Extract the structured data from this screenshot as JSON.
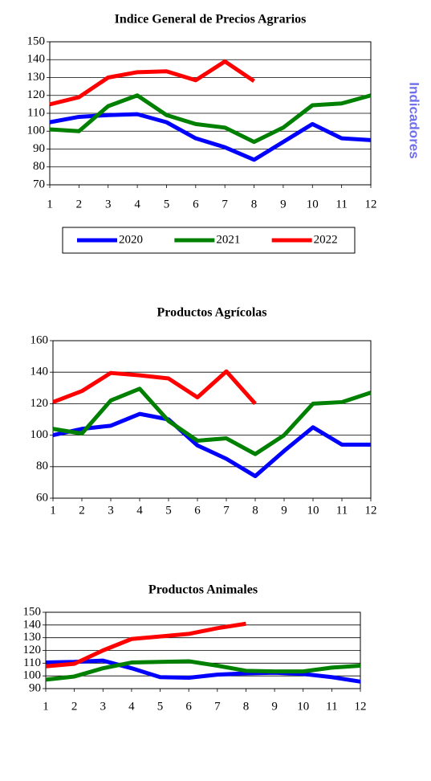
{
  "side_label": "Indicadores",
  "chart_data": [
    {
      "type": "line",
      "title": "Indice General de Precios Agrarios",
      "x": [
        1,
        2,
        3,
        4,
        5,
        6,
        7,
        8,
        9,
        10,
        11,
        12
      ],
      "xlim": [
        1,
        12
      ],
      "xticks": [
        1,
        2,
        3,
        4,
        5,
        6,
        7,
        8,
        9,
        10,
        11,
        12
      ],
      "ylim": [
        70,
        150
      ],
      "yticks": [
        70,
        80,
        90,
        100,
        110,
        120,
        130,
        140,
        150
      ],
      "grid": true,
      "legend": "bottom",
      "series": [
        {
          "name": "2020",
          "color": "#0000ff",
          "values": [
            105,
            108,
            109,
            109.5,
            105,
            96,
            91,
            84,
            94,
            104,
            96,
            95
          ]
        },
        {
          "name": "2021",
          "color": "#008000",
          "values": [
            101,
            100,
            114,
            120,
            109,
            104,
            102,
            94,
            102,
            114.5,
            115.5,
            120
          ]
        },
        {
          "name": "2022",
          "color": "#ff0000",
          "values": [
            115,
            119,
            130,
            133,
            133.5,
            128.5,
            139,
            128,
            null,
            null,
            null,
            null
          ]
        }
      ]
    },
    {
      "type": "line",
      "title": "Productos Agrícolas",
      "x": [
        1,
        2,
        3,
        4,
        5,
        6,
        7,
        8,
        9,
        10,
        11,
        12
      ],
      "xlim": [
        1,
        12
      ],
      "xticks": [
        1,
        2,
        3,
        4,
        5,
        6,
        7,
        8,
        9,
        10,
        11,
        12
      ],
      "ylim": [
        60,
        160
      ],
      "yticks": [
        60,
        80,
        100,
        120,
        140,
        160
      ],
      "grid": true,
      "series": [
        {
          "name": "2020",
          "color": "#0000ff",
          "values": [
            100,
            104,
            106,
            113.5,
            110,
            93.5,
            85,
            74,
            90,
            105,
            94,
            94
          ]
        },
        {
          "name": "2021",
          "color": "#008000",
          "values": [
            104,
            101,
            122,
            129.5,
            109,
            96.5,
            98,
            88,
            100,
            120,
            121,
            127
          ]
        },
        {
          "name": "2022",
          "color": "#ff0000",
          "values": [
            121,
            128,
            139.5,
            138,
            136,
            124,
            140.5,
            120,
            null,
            null,
            null,
            null
          ]
        }
      ]
    },
    {
      "type": "line",
      "title": "Productos Animales",
      "x": [
        1,
        2,
        3,
        4,
        5,
        6,
        7,
        8,
        9,
        10,
        11,
        12
      ],
      "xlim": [
        1,
        12
      ],
      "xticks": [
        1,
        2,
        3,
        4,
        5,
        6,
        7,
        8,
        9,
        10,
        11,
        12
      ],
      "ylim": [
        90,
        150
      ],
      "yticks": [
        90,
        100,
        110,
        120,
        130,
        140,
        150
      ],
      "grid": true,
      "series": [
        {
          "name": "2020",
          "color": "#0000ff",
          "values": [
            110.5,
            111,
            112,
            106,
            99,
            98.5,
            101,
            102,
            102.5,
            101.5,
            99,
            95.5
          ]
        },
        {
          "name": "2021",
          "color": "#008000",
          "values": [
            97,
            99.5,
            106,
            110.5,
            111,
            111.5,
            108,
            104,
            103.5,
            103.5,
            106.5,
            108
          ]
        },
        {
          "name": "2022",
          "color": "#ff0000",
          "values": [
            107.5,
            109.5,
            120,
            129,
            131,
            133,
            137.5,
            141,
            null,
            null,
            null,
            null
          ]
        }
      ]
    }
  ]
}
